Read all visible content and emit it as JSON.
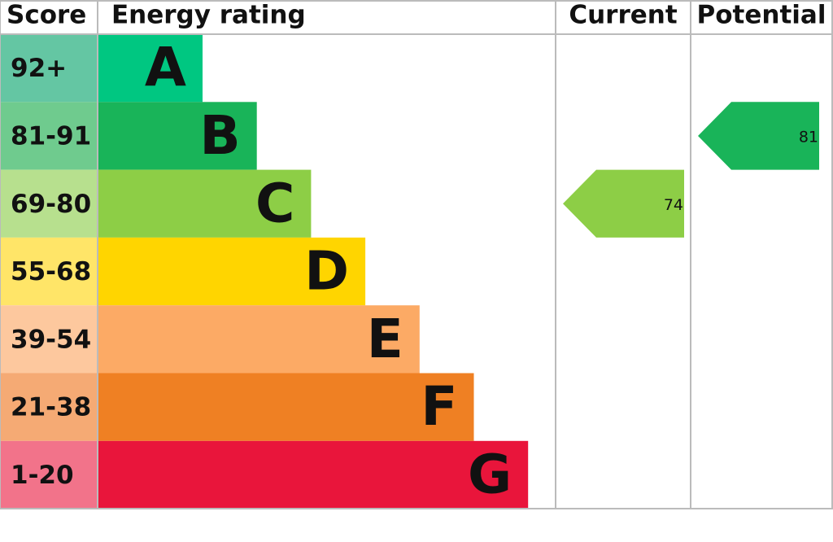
{
  "header": {
    "score": "Score",
    "rating": "Energy rating",
    "current": "Current",
    "potential": "Potential"
  },
  "bands": [
    {
      "score": "92+",
      "letter": "A",
      "color": "#00c781",
      "score_color": "#64c6a3"
    },
    {
      "score": "81-91",
      "letter": "B",
      "color": "#19b459",
      "score_color": "#6fcb8e"
    },
    {
      "score": "69-80",
      "letter": "C",
      "color": "#8dce46",
      "score_color": "#b7e08e"
    },
    {
      "score": "55-68",
      "letter": "D",
      "color": "#ffd500",
      "score_color": "#ffe568"
    },
    {
      "score": "39-54",
      "letter": "E",
      "color": "#fcaa65",
      "score_color": "#fdc89e"
    },
    {
      "score": "21-38",
      "letter": "F",
      "color": "#ef8023",
      "score_color": "#f5aa74"
    },
    {
      "score": "1-20",
      "letter": "G",
      "color": "#e9153b",
      "score_color": "#f2738a"
    }
  ],
  "current": {
    "value": 74
  },
  "potential": {
    "value": 81
  }
}
